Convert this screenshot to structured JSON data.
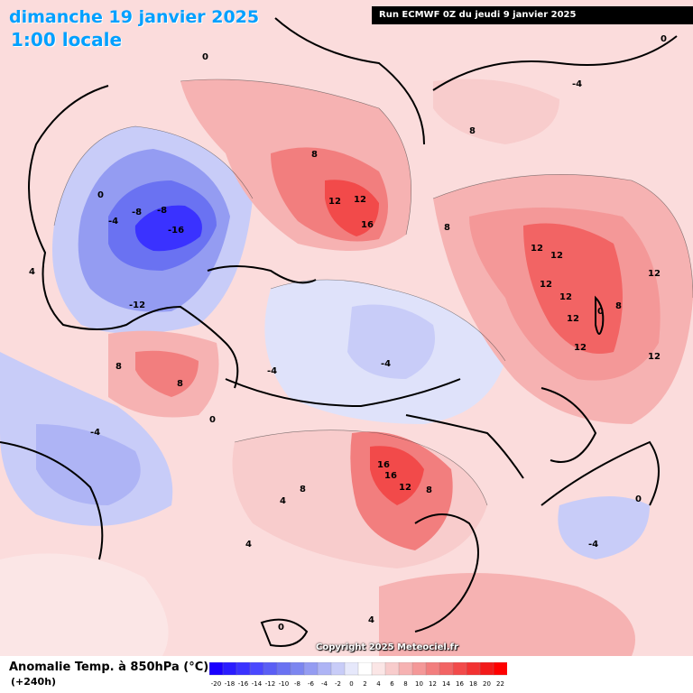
{
  "header": {
    "date_label": "dimanche 19 janvier 2025",
    "time_label": "1:00 locale",
    "run_label": "Run ECMWF 0Z du jeudi 9 janvier 2025"
  },
  "footer": {
    "variable_title": "Anomalie Temp. à 850hPa (°C)",
    "lead_time": "(+240h)",
    "copyright": "Copyright 2025 Meteociel.fr"
  },
  "legend": {
    "ticks": [
      "-20",
      "-18",
      "-16",
      "-14",
      "-12",
      "-10",
      "-8",
      "-6",
      "-4",
      "-2",
      "0",
      "2",
      "4",
      "6",
      "8",
      "10",
      "12",
      "14",
      "16",
      "18",
      "20",
      "22"
    ],
    "colors": [
      "#1a00ff",
      "#2a1cff",
      "#3a32ff",
      "#4a48ff",
      "#5a5ef5",
      "#6a72f2",
      "#7c86f0",
      "#949cf2",
      "#aeb4f5",
      "#c8ccf8",
      "#e6e8fb",
      "#ffffff",
      "#fbe6e6",
      "#f8cccc",
      "#f6b2b2",
      "#f49898",
      "#f27e7e",
      "#f26464",
      "#f24a4a",
      "#f23232",
      "#f21a1a",
      "#ff0000"
    ]
  },
  "contour_labels": [
    {
      "text": "0"
    },
    {
      "text": "4"
    },
    {
      "text": "-4"
    },
    {
      "text": "-8"
    },
    {
      "text": "-12"
    },
    {
      "text": "-16"
    },
    {
      "text": "8"
    },
    {
      "text": "12"
    },
    {
      "text": "16"
    }
  ],
  "colors": {
    "title_blue": "#00a0ff",
    "banner_bg": "#000000",
    "cold_core": "#3434f0",
    "warm_core": "#f04040"
  }
}
